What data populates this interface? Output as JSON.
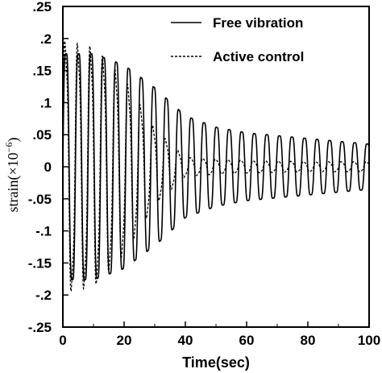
{
  "chart_data": {
    "type": "line",
    "title": "",
    "xlabel": "Time(sec)",
    "ylabel": {
      "prefix": "strain(",
      "times": "×",
      "base": "10",
      "exponent": "−6",
      "suffix": ")"
    },
    "xlim": [
      0,
      100
    ],
    "ylim": [
      -0.25,
      0.25
    ],
    "xticks": [
      0,
      20,
      40,
      60,
      80,
      100
    ],
    "xtick_labels": [
      "0",
      "20",
      "40",
      "60",
      "80",
      "100"
    ],
    "yticks": [
      0.25,
      0.2,
      0.15,
      0.1,
      0.05,
      0,
      -0.05,
      -0.1,
      -0.15,
      -0.2,
      -0.25
    ],
    "ytick_labels": [
      ".25",
      ".2",
      ".15",
      ".1",
      ".05",
      "0",
      "-.05",
      "-.1",
      "-.15",
      "-.2",
      "-.25"
    ],
    "grid": false,
    "legend_position": "top-right",
    "series": [
      {
        "name": "Free vibration",
        "style": "solid",
        "color": "#000000",
        "amplitude_envelope": [
          {
            "t": 0,
            "amp": 0.2
          },
          {
            "t": 10,
            "amp": 0.2
          },
          {
            "t": 20,
            "amp": 0.18
          },
          {
            "t": 30,
            "amp": 0.14
          },
          {
            "t": 40,
            "amp": 0.09
          },
          {
            "t": 50,
            "amp": 0.07
          },
          {
            "t": 60,
            "amp": 0.06
          },
          {
            "t": 70,
            "amp": 0.055
          },
          {
            "t": 80,
            "amp": 0.05
          },
          {
            "t": 90,
            "amp": 0.045
          },
          {
            "t": 100,
            "amp": 0.04
          }
        ],
        "period_sec": 4.1
      },
      {
        "name": "Active control",
        "style": "dashed",
        "color": "#000000",
        "amplitude_envelope": [
          {
            "t": 0,
            "amp": 0.2
          },
          {
            "t": 10,
            "amp": 0.19
          },
          {
            "t": 20,
            "amp": 0.14
          },
          {
            "t": 30,
            "amp": 0.06
          },
          {
            "t": 40,
            "amp": 0.015
          },
          {
            "t": 50,
            "amp": 0.012
          },
          {
            "t": 60,
            "amp": 0.01
          },
          {
            "t": 80,
            "amp": 0.008
          },
          {
            "t": 100,
            "amp": 0.008
          }
        ],
        "period_sec": 4.1
      }
    ]
  }
}
